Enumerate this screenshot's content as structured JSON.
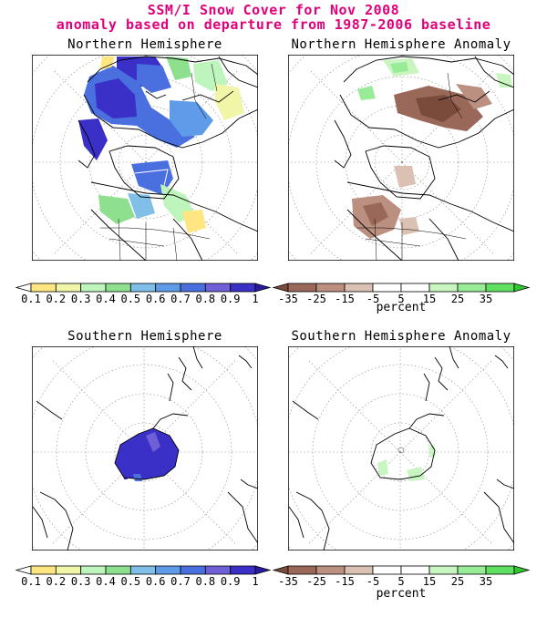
{
  "title_line1": "SSM/I Snow Cover for Nov 2008",
  "title_line2": "anomaly based on departure from 1987-2006 baseline",
  "panels": {
    "nh": "Northern Hemisphere",
    "nh_anom": "Northern Hemisphere Anomaly",
    "sh": "Southern Hemisphere",
    "sh_anom": "Southern Hemisphere Anomaly"
  },
  "cover_scale": {
    "labels": [
      "0.1",
      "0.2",
      "0.3",
      "0.4",
      "0.5",
      "0.6",
      "0.7",
      "0.8",
      "0.9",
      "1"
    ],
    "colors": [
      "#ffffff",
      "#ffe680",
      "#f0f5a8",
      "#bdf5bd",
      "#8ee08e",
      "#7fbfe8",
      "#5f9be8",
      "#4a70e0",
      "#7060d8",
      "#3a30c8",
      "#2a1aa0"
    ]
  },
  "anomaly_scale": {
    "labels": [
      "-35",
      "-25",
      "-15",
      "-5",
      "5",
      "15",
      "25",
      "35"
    ],
    "unit": "percent",
    "colors": [
      "#7a4a3a",
      "#9a6858",
      "#bb9080",
      "#dbc0b4",
      "#ffffff",
      "#ffffff",
      "#c8f5c0",
      "#98ec98",
      "#60e060",
      "#30c830"
    ]
  }
}
